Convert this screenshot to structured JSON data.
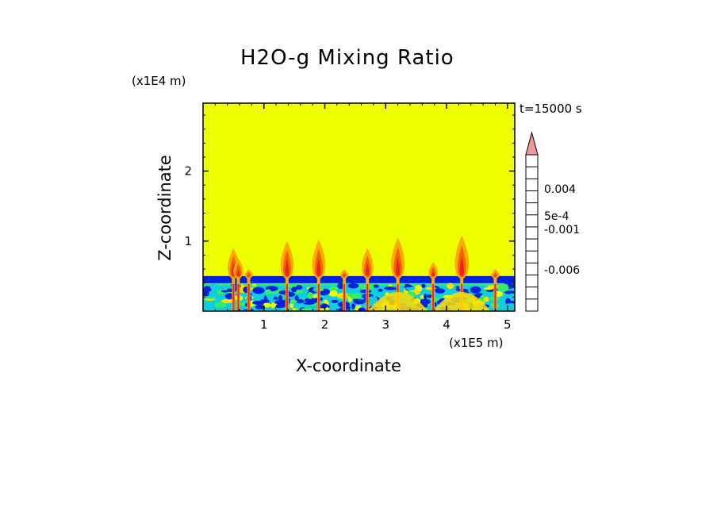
{
  "chart_data": {
    "type": "heatmap",
    "title": "H2O-g Mixing Ratio",
    "xlabel": "X-coordinate",
    "ylabel": "Z-coordinate",
    "x_unit_label": "(x1E5 m)",
    "y_unit_label": "(x1E4 m)",
    "time_label": "t=15000 s",
    "xlim": [
      0,
      5.12
    ],
    "ylim": [
      0,
      2.97
    ],
    "x_ticks": [
      1,
      2,
      3,
      4,
      5
    ],
    "y_ticks": [
      1,
      2
    ],
    "background_value": 0,
    "background_color": "#eeff00",
    "boundary_layer": {
      "top_z": 0.5,
      "description_colors": [
        "#0022dd",
        "#11ccdd",
        "#33ee66",
        "#ffaa00"
      ]
    },
    "plumes_x": [
      0.5,
      0.58,
      0.75,
      1.38,
      1.9,
      2.32,
      2.7,
      3.2,
      3.78,
      4.25,
      4.8
    ],
    "plume_tops_z": [
      0.9,
      0.75,
      0.6,
      1.0,
      1.02,
      0.6,
      0.9,
      1.05,
      0.7,
      1.08,
      0.6
    ],
    "colorbar": {
      "levels": [
        {
          "color": "#ee00aa"
        },
        {
          "color": "#aa0099"
        },
        {
          "color": "#6600aa"
        },
        {
          "color": "#0000aa"
        },
        {
          "color": "#0022dd"
        },
        {
          "color": "#11ccdd"
        },
        {
          "color": "#33ee66"
        },
        {
          "color": "#eeff00"
        },
        {
          "color": "#ffdd00"
        },
        {
          "color": "#ffaa00"
        },
        {
          "color": "#ee6600"
        },
        {
          "color": "#ee2222"
        },
        {
          "color": "#ee7777"
        }
      ],
      "extend_color": "#ee9999",
      "tick_labels": [
        "0.004",
        "5e-4",
        "-0.001",
        "-0.006"
      ]
    }
  }
}
